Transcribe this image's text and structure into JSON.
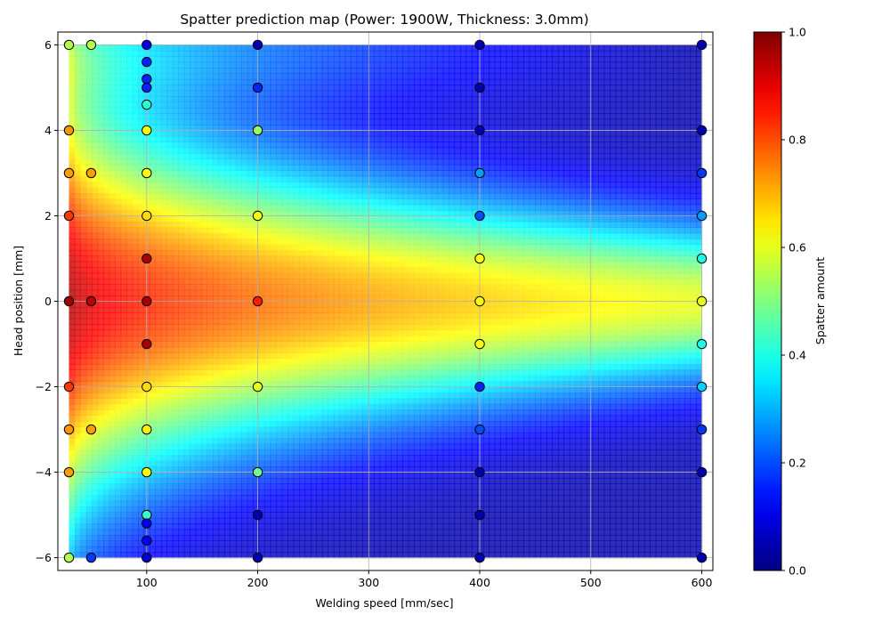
{
  "chart_data": {
    "type": "scatter",
    "title": "Spatter prediction map (Power: 1900W, Thickness: 3.0mm)",
    "xlabel": "Welding speed [mm/sec]",
    "ylabel": "Head position [mm]",
    "xlim": [
      20,
      610
    ],
    "ylim": [
      -6.3,
      6.3
    ],
    "xticks": [
      100,
      200,
      300,
      400,
      500,
      600
    ],
    "yticks": [
      -6,
      -4,
      -2,
      0,
      2,
      4,
      6
    ],
    "grid": true,
    "colormap": "jet",
    "background": {
      "type": "heatmap",
      "description_units": "predicted spatter amount",
      "x_range": [
        30,
        600
      ],
      "y_range": [
        -6,
        6
      ]
    },
    "colorbar": {
      "label": "Spatter amount",
      "min": 0.0,
      "max": 1.0,
      "ticks": [
        0.0,
        0.2,
        0.4,
        0.6,
        0.8,
        1.0
      ],
      "tick_labels": [
        "0.0",
        "0.2",
        "0.4",
        "0.6",
        "0.8",
        "1.0"
      ]
    },
    "points": [
      {
        "x": 30,
        "y": 6,
        "v": 0.55
      },
      {
        "x": 30,
        "y": 4,
        "v": 0.73
      },
      {
        "x": 30,
        "y": 3,
        "v": 0.72
      },
      {
        "x": 30,
        "y": 2,
        "v": 0.82
      },
      {
        "x": 30,
        "y": 0,
        "v": 0.97
      },
      {
        "x": 30,
        "y": -2,
        "v": 0.82
      },
      {
        "x": 30,
        "y": -3,
        "v": 0.73
      },
      {
        "x": 30,
        "y": -4,
        "v": 0.72
      },
      {
        "x": 30,
        "y": -6,
        "v": 0.55
      },
      {
        "x": 50,
        "y": 6,
        "v": 0.55
      },
      {
        "x": 50,
        "y": 3,
        "v": 0.72
      },
      {
        "x": 50,
        "y": 0,
        "v": 0.95
      },
      {
        "x": 50,
        "y": -3,
        "v": 0.72
      },
      {
        "x": 50,
        "y": -6,
        "v": 0.18
      },
      {
        "x": 100,
        "y": 6,
        "v": 0.1
      },
      {
        "x": 100,
        "y": 5.6,
        "v": 0.16
      },
      {
        "x": 100,
        "y": 5.2,
        "v": 0.16
      },
      {
        "x": 100,
        "y": 5.0,
        "v": 0.16
      },
      {
        "x": 100,
        "y": 4.6,
        "v": 0.42
      },
      {
        "x": 100,
        "y": 4,
        "v": 0.62
      },
      {
        "x": 100,
        "y": 3,
        "v": 0.63
      },
      {
        "x": 100,
        "y": 2,
        "v": 0.66
      },
      {
        "x": 100,
        "y": 1,
        "v": 0.96
      },
      {
        "x": 100,
        "y": 0,
        "v": 0.96
      },
      {
        "x": 100,
        "y": -1,
        "v": 0.96
      },
      {
        "x": 100,
        "y": -2,
        "v": 0.66
      },
      {
        "x": 100,
        "y": -3,
        "v": 0.64
      },
      {
        "x": 100,
        "y": -4,
        "v": 0.62
      },
      {
        "x": 100,
        "y": -5,
        "v": 0.43
      },
      {
        "x": 100,
        "y": -5.2,
        "v": 0.12
      },
      {
        "x": 100,
        "y": -5.6,
        "v": 0.12
      },
      {
        "x": 100,
        "y": -6,
        "v": 0.08
      },
      {
        "x": 200,
        "y": 6,
        "v": 0.05
      },
      {
        "x": 200,
        "y": 5,
        "v": 0.16
      },
      {
        "x": 200,
        "y": 4,
        "v": 0.52
      },
      {
        "x": 200,
        "y": 2,
        "v": 0.62
      },
      {
        "x": 200,
        "y": 0,
        "v": 0.85
      },
      {
        "x": 200,
        "y": -2,
        "v": 0.6
      },
      {
        "x": 200,
        "y": -4,
        "v": 0.48
      },
      {
        "x": 200,
        "y": -5,
        "v": 0.05
      },
      {
        "x": 200,
        "y": -6,
        "v": 0.05
      },
      {
        "x": 400,
        "y": 6,
        "v": 0.05
      },
      {
        "x": 400,
        "y": 5,
        "v": 0.05
      },
      {
        "x": 400,
        "y": 4,
        "v": 0.05
      },
      {
        "x": 400,
        "y": 3,
        "v": 0.28
      },
      {
        "x": 400,
        "y": 2,
        "v": 0.2
      },
      {
        "x": 400,
        "y": 1,
        "v": 0.62
      },
      {
        "x": 400,
        "y": 0,
        "v": 0.62
      },
      {
        "x": 400,
        "y": -1,
        "v": 0.62
      },
      {
        "x": 400,
        "y": -2,
        "v": 0.16
      },
      {
        "x": 400,
        "y": -3,
        "v": 0.2
      },
      {
        "x": 400,
        "y": -4,
        "v": 0.05
      },
      {
        "x": 400,
        "y": -5,
        "v": 0.05
      },
      {
        "x": 400,
        "y": -6,
        "v": 0.05
      },
      {
        "x": 600,
        "y": 6,
        "v": 0.05
      },
      {
        "x": 600,
        "y": 4,
        "v": 0.05
      },
      {
        "x": 600,
        "y": 3,
        "v": 0.18
      },
      {
        "x": 600,
        "y": 2,
        "v": 0.28
      },
      {
        "x": 600,
        "y": 1,
        "v": 0.4
      },
      {
        "x": 600,
        "y": 0,
        "v": 0.6
      },
      {
        "x": 600,
        "y": -1,
        "v": 0.4
      },
      {
        "x": 600,
        "y": -2,
        "v": 0.33
      },
      {
        "x": 600,
        "y": -3,
        "v": 0.18
      },
      {
        "x": 600,
        "y": -4,
        "v": 0.05
      },
      {
        "x": 600,
        "y": -6,
        "v": 0.05
      }
    ]
  }
}
